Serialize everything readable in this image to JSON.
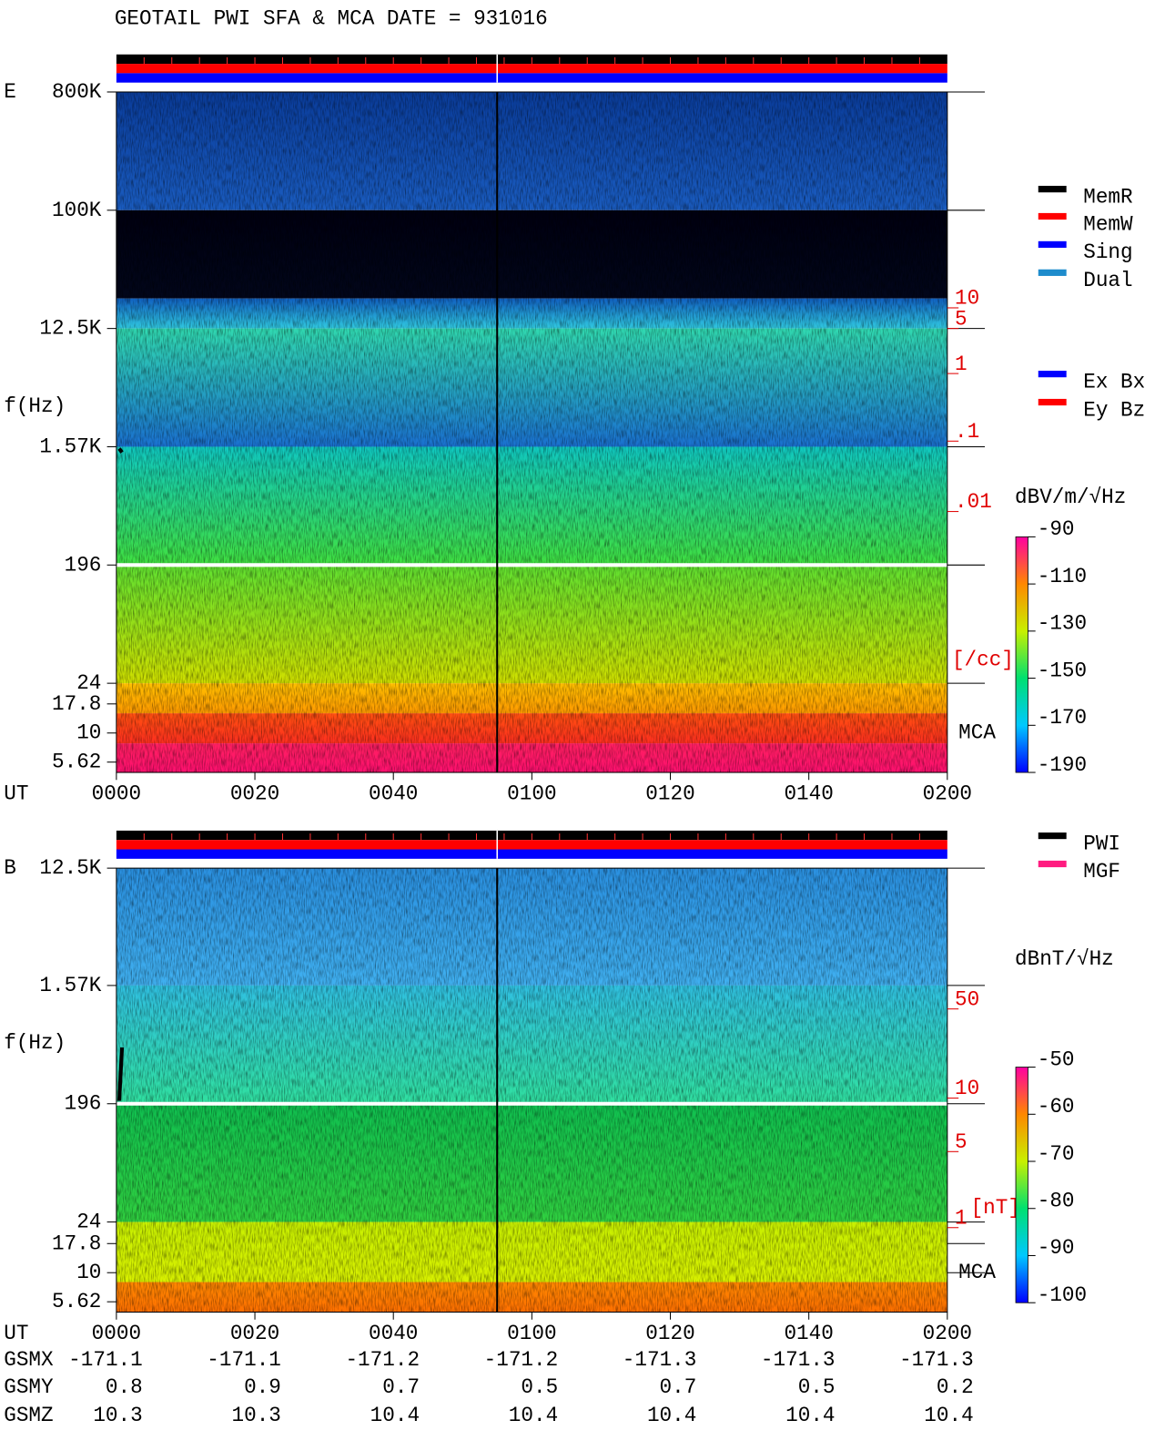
{
  "header": {
    "title": "GEOTAIL  PWI SFA & MCA   DATE = 931016"
  },
  "time_axis": {
    "label": "UT",
    "ticks": [
      "0000",
      "0020",
      "0040",
      "0100",
      "0120",
      "0140",
      "0200"
    ]
  },
  "panels": [
    {
      "label": "E",
      "axis_label": "f(Hz)",
      "freq_labels": [
        "800K",
        "100K",
        "12.5K",
        "1.57K",
        "196",
        "24",
        "17.8",
        "10",
        "5.62"
      ],
      "density_labels": [
        "10",
        "5",
        "1",
        ".1",
        ".01"
      ],
      "density_unit": "[/cc]",
      "mca_label": "MCA",
      "colorbar": {
        "unit": "dBV/m/√Hz",
        "clim": [
          -190,
          -90
        ],
        "ticks": [
          -90,
          -110,
          -130,
          -150,
          -170,
          -190
        ]
      }
    },
    {
      "label": "B",
      "axis_label": "f(Hz)",
      "freq_labels": [
        "12.5K",
        "1.57K",
        "196",
        "24",
        "17.8",
        "10",
        "5.62"
      ],
      "density_labels": [
        "50",
        "10",
        "5",
        "1"
      ],
      "density_unit": "[nT]",
      "mca_label": "MCA",
      "colorbar": {
        "unit": "dBnT/√Hz",
        "clim": [
          -100,
          -50
        ],
        "ticks": [
          -50,
          -60,
          -70,
          -80,
          -90,
          -100
        ]
      }
    }
  ],
  "legends": {
    "mode": [
      {
        "name": "MemR",
        "color": "#000000"
      },
      {
        "name": "MemW",
        "color": "#ff0000"
      },
      {
        "name": "Sing",
        "color": "#0000ff"
      },
      {
        "name": "Dual",
        "color": "#1e8ccc"
      }
    ],
    "antenna": [
      {
        "name": "Ex Bx",
        "color": "#0000ff"
      },
      {
        "name": "Ey Bz",
        "color": "#ff0000"
      }
    ],
    "source": [
      {
        "name": "PWI",
        "color": "#000000"
      },
      {
        "name": "MGF",
        "color": "#ff1c80"
      }
    ]
  },
  "ephemeris": [
    {
      "name": "GSMX",
      "values": [
        -171.1,
        -171.1,
        -171.2,
        -171.2,
        -171.3,
        -171.3,
        -171.3
      ]
    },
    {
      "name": "GSMY",
      "values": [
        0.8,
        0.9,
        0.7,
        0.5,
        0.7,
        0.5,
        0.2
      ]
    },
    {
      "name": "GSMZ",
      "values": [
        10.3,
        10.3,
        10.4,
        10.4,
        10.4,
        10.4,
        10.4
      ]
    }
  ]
}
